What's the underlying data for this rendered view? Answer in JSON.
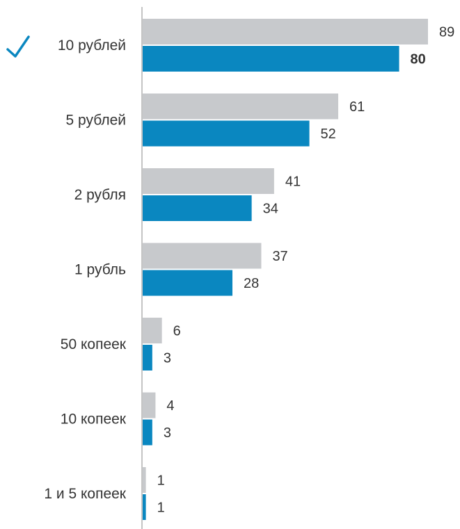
{
  "chart_data": {
    "type": "bar",
    "orientation": "horizontal",
    "categories": [
      "10 рублей",
      "5 рублей",
      "2 рубля",
      "1 рубль",
      "50 копеек",
      "10 копеек",
      "1 и 5 копеек"
    ],
    "series": [
      {
        "values": [
          89,
          61,
          41,
          37,
          6,
          4,
          1
        ],
        "color": "#c7c9cc"
      },
      {
        "values": [
          80,
          52,
          34,
          28,
          3,
          3,
          1
        ],
        "color": "#0a87c0"
      }
    ],
    "highlight": {
      "category_index": 0,
      "marker": "checkmark-icon",
      "marker_color": "#0a87c0",
      "series_index": 1,
      "label_color": "#0a87c0"
    },
    "xlim": [
      0,
      89
    ],
    "grid": false,
    "axis_color": "#b0b0b0"
  }
}
